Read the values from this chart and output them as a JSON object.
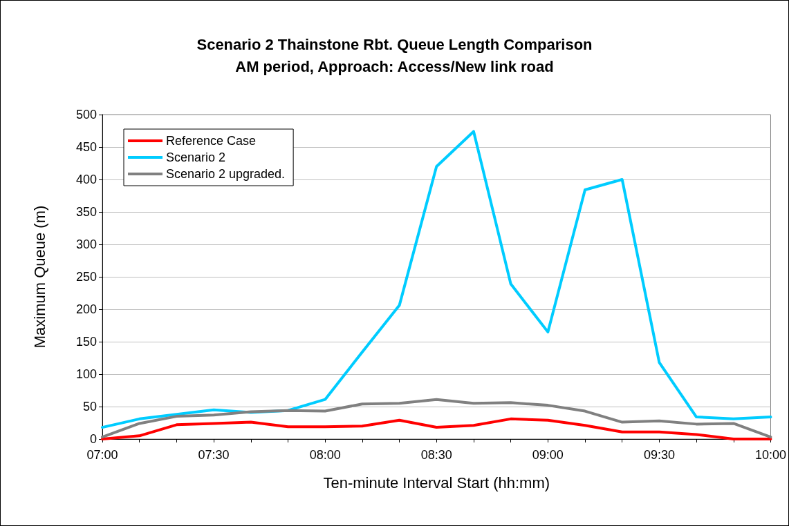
{
  "chart_data": {
    "type": "line",
    "title": "Scenario 2 Thainstone Rbt. Queue Length Comparison\nAM period, Approach: Access/New link road",
    "xlabel": "Ten-minute Interval Start (hh:mm)",
    "ylabel": "Maximum Queue (m)",
    "categories": [
      "07:00",
      null,
      null,
      "07:30",
      null,
      null,
      "08:00",
      null,
      null,
      "08:30",
      null,
      null,
      "09:00",
      null,
      null,
      "09:30",
      null,
      null,
      "10:00"
    ],
    "series": [
      {
        "name": "Reference Case",
        "color": "#ff0000",
        "values": [
          0,
          5,
          22,
          24,
          26,
          19,
          19,
          20,
          29,
          18,
          21,
          31,
          29,
          21,
          11,
          11,
          7,
          0,
          0
        ]
      },
      {
        "name": "Scenario 2",
        "color": "#00ccff",
        "values": [
          18,
          31,
          38,
          45,
          41,
          44,
          61,
          134,
          206,
          420,
          474,
          239,
          165,
          384,
          400,
          118,
          34,
          31,
          34
        ]
      },
      {
        "name": "Scenario 2 upgraded.",
        "color": "#808080",
        "values": [
          3,
          24,
          35,
          37,
          42,
          44,
          43,
          54,
          55,
          61,
          55,
          56,
          52,
          43,
          26,
          28,
          23,
          24,
          3
        ]
      }
    ],
    "ylim": [
      0,
      500
    ],
    "yticks": [
      0,
      50,
      100,
      150,
      200,
      250,
      300,
      350,
      400,
      450,
      500
    ],
    "grid": "y",
    "legend": "top left",
    "marker": "none",
    "line_style": "solid"
  }
}
